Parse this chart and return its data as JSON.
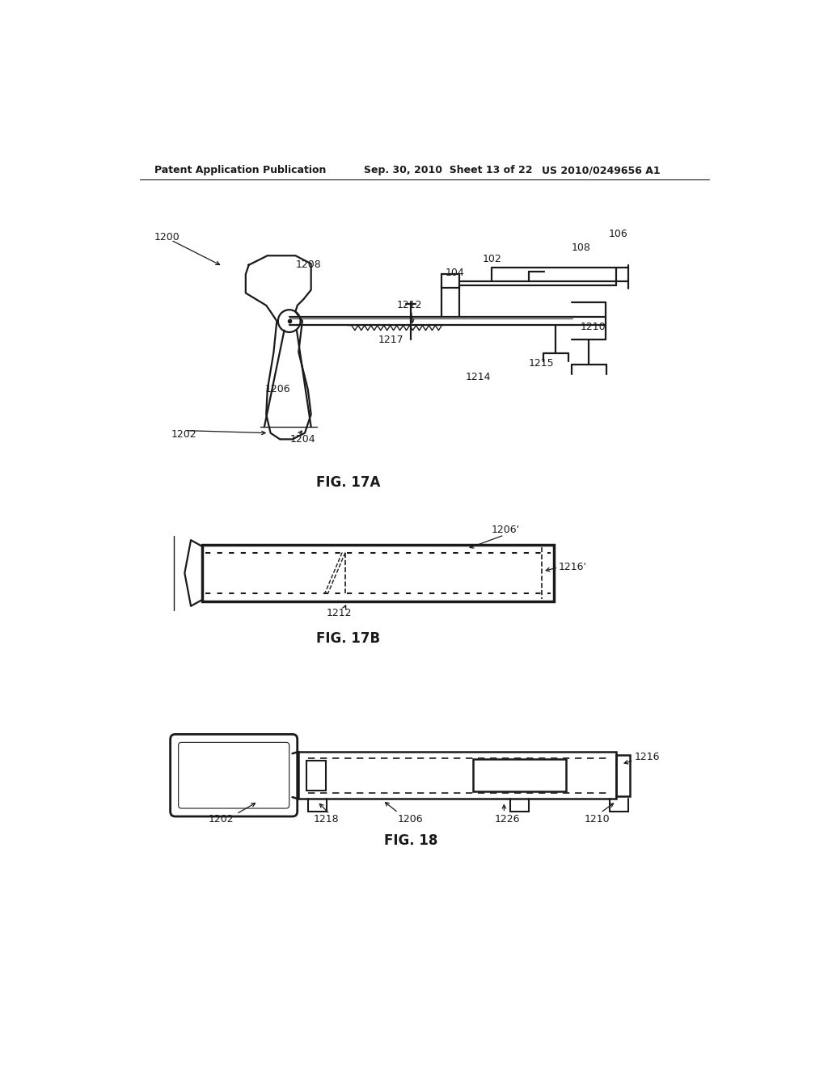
{
  "background_color": "#ffffff",
  "header_left": "Patent Application Publication",
  "header_center": "Sep. 30, 2010  Sheet 13 of 22",
  "header_right": "US 2010/0249656 A1",
  "fig17a_caption": "FIG. 17A",
  "fig17b_caption": "FIG. 17B",
  "fig18_caption": "FIG. 18"
}
